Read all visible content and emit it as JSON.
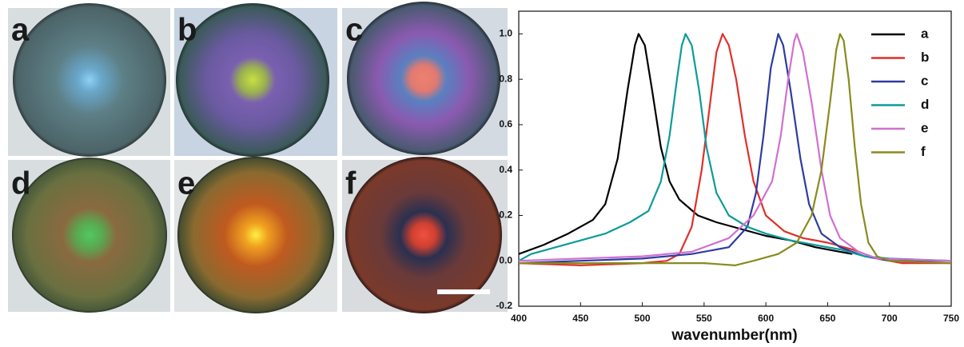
{
  "panels": {
    "labels": [
      "a",
      "b",
      "c",
      "d",
      "e",
      "f"
    ]
  },
  "chart_data": {
    "type": "line",
    "x_label": "wavenumber(nm)",
    "xlim": [
      400,
      750
    ],
    "xticks": [
      400,
      450,
      500,
      550,
      600,
      650,
      700,
      750
    ],
    "ylim": [
      -0.2,
      1.1
    ],
    "yticks": [
      -0.2,
      {
        "value": 0,
        "label": "0.0"
      },
      0.2,
      0.4,
      0.6,
      0.8,
      {
        "value": 1,
        "label": "1.0"
      }
    ],
    "legend": "upper right",
    "series": [
      {
        "name": "a",
        "color": "#000000",
        "x": [
          400,
          420,
          440,
          460,
          470,
          480,
          488,
          494,
          497,
          502,
          508,
          515,
          522,
          530,
          545,
          560,
          580,
          600,
          620,
          640,
          660,
          670
        ],
        "values": [
          0.03,
          0.07,
          0.12,
          0.18,
          0.25,
          0.45,
          0.75,
          0.95,
          1.0,
          0.95,
          0.75,
          0.5,
          0.35,
          0.27,
          0.2,
          0.17,
          0.14,
          0.11,
          0.09,
          0.06,
          0.04,
          0.03
        ]
      },
      {
        "name": "b",
        "color": "#e0302a",
        "x": [
          400,
          450,
          500,
          520,
          530,
          540,
          548,
          555,
          560,
          565,
          570,
          576,
          583,
          590,
          600,
          615,
          630,
          650,
          670,
          690,
          710,
          750
        ],
        "values": [
          -0.01,
          -0.02,
          -0.01,
          0.0,
          0.03,
          0.15,
          0.4,
          0.7,
          0.92,
          1.0,
          0.95,
          0.8,
          0.55,
          0.35,
          0.2,
          0.13,
          0.1,
          0.08,
          0.05,
          0.01,
          -0.01,
          -0.01
        ]
      },
      {
        "name": "c",
        "color": "#2e3c9e",
        "x": [
          400,
          450,
          500,
          540,
          570,
          585,
          592,
          598,
          604,
          610,
          614,
          620,
          628,
          635,
          645,
          660,
          680,
          700,
          750
        ],
        "values": [
          -0.01,
          0.0,
          0.01,
          0.03,
          0.06,
          0.15,
          0.3,
          0.55,
          0.85,
          1.0,
          0.95,
          0.75,
          0.45,
          0.25,
          0.12,
          0.06,
          0.02,
          0.0,
          0.0
        ]
      },
      {
        "name": "d",
        "color": "#0f9a9a",
        "x": [
          400,
          410,
          430,
          450,
          470,
          490,
          505,
          515,
          522,
          528,
          532,
          535,
          540,
          546,
          552,
          560,
          570,
          585,
          600,
          620,
          640,
          660,
          680,
          700,
          750
        ],
        "values": [
          0.0,
          0.03,
          0.06,
          0.09,
          0.12,
          0.17,
          0.22,
          0.35,
          0.55,
          0.8,
          0.95,
          1.0,
          0.95,
          0.75,
          0.5,
          0.3,
          0.2,
          0.15,
          0.12,
          0.09,
          0.07,
          0.05,
          0.02,
          0.01,
          0.0
        ]
      },
      {
        "name": "e",
        "color": "#d070d0",
        "x": [
          400,
          450,
          500,
          540,
          570,
          590,
          605,
          612,
          618,
          623,
          625,
          630,
          637,
          645,
          652,
          660,
          675,
          690,
          750
        ],
        "values": [
          0.0,
          0.01,
          0.02,
          0.04,
          0.1,
          0.2,
          0.35,
          0.55,
          0.8,
          0.97,
          1.0,
          0.92,
          0.7,
          0.4,
          0.2,
          0.1,
          0.04,
          0.01,
          0.0
        ]
      },
      {
        "name": "f",
        "color": "#8a8a1e",
        "x": [
          400,
          450,
          500,
          550,
          575,
          590,
          610,
          625,
          637,
          645,
          652,
          657,
          660,
          663,
          667,
          672,
          677,
          683,
          690,
          700,
          750
        ],
        "values": [
          -0.01,
          -0.01,
          -0.01,
          -0.01,
          -0.02,
          0.0,
          0.03,
          0.08,
          0.2,
          0.4,
          0.7,
          0.93,
          1.0,
          0.97,
          0.8,
          0.5,
          0.25,
          0.08,
          0.02,
          0.0,
          -0.01
        ]
      }
    ]
  }
}
